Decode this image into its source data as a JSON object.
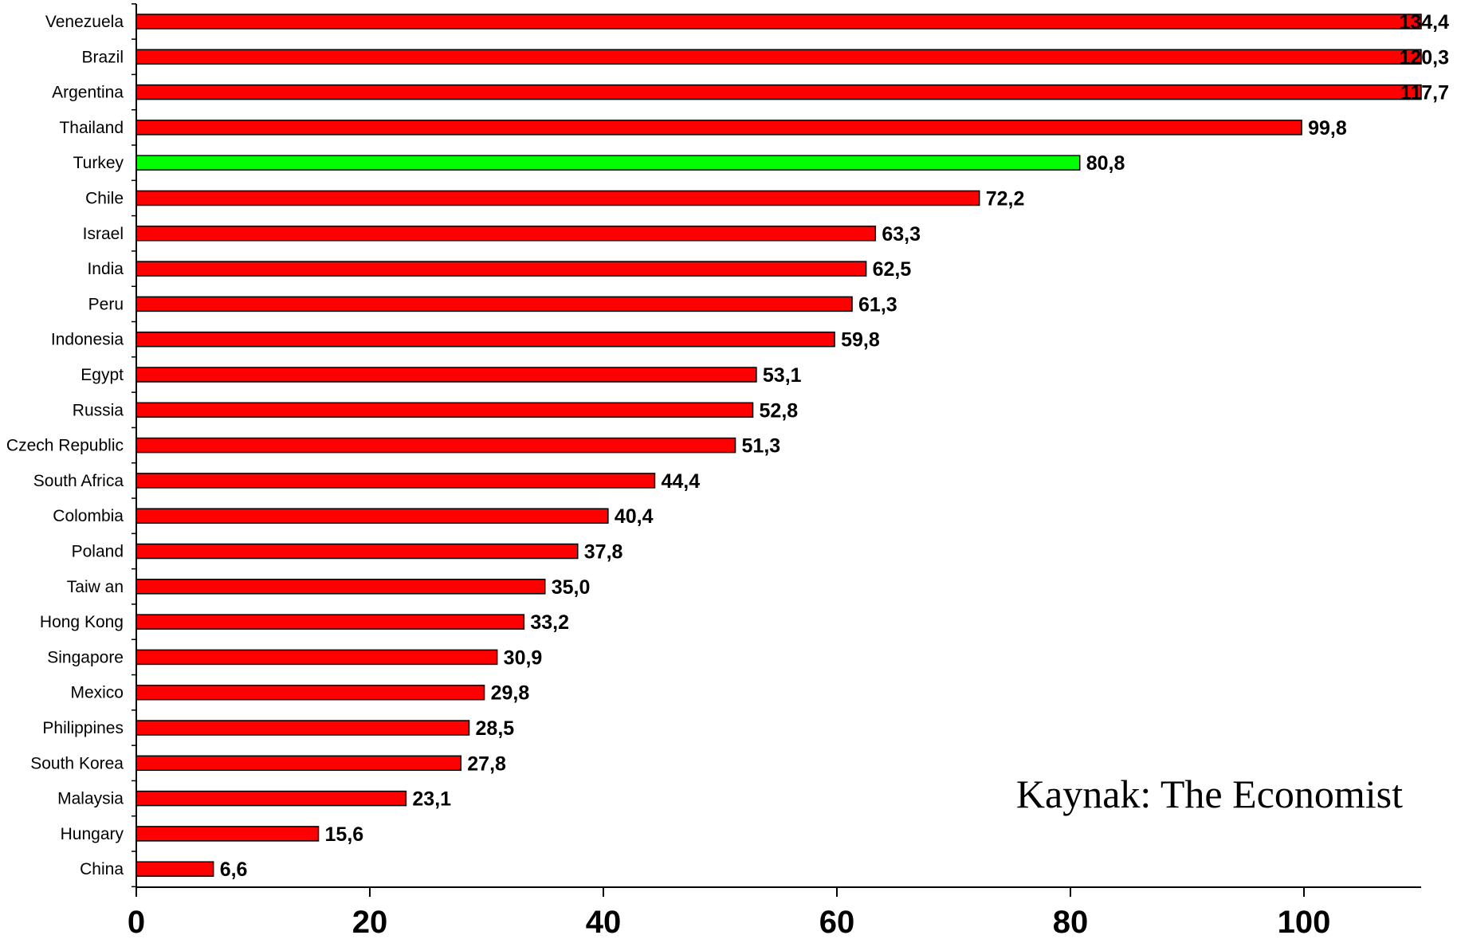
{
  "chart_data": {
    "type": "bar",
    "orientation": "horizontal",
    "title": "",
    "xlabel": "",
    "ylabel": "",
    "xlim": [
      0,
      110
    ],
    "ticks": [
      0,
      20,
      40,
      60,
      80,
      100
    ],
    "tick_labels": [
      "0",
      "20",
      "40",
      "60",
      "80",
      "100"
    ],
    "grid": false,
    "legend": "none",
    "annotation": "Kaynak: The Economist",
    "colors": {
      "default_bar": "#ff0000",
      "highlight_bar": "#00ff00",
      "outline": "#000000"
    },
    "highlight": "Turkey",
    "categories": [
      "Venezuela",
      "Brazil",
      "Argentina",
      "Thailand",
      "Turkey",
      "Chile",
      "Israel",
      "India",
      "Peru",
      "Indonesia",
      "Egypt",
      "Russia",
      "Czech Republic",
      "South Africa",
      "Colombia",
      "Poland",
      "Taiw an",
      "Hong Kong",
      "Singapore",
      "Mexico",
      "Philippines",
      "South Korea",
      "Malaysia",
      "Hungary",
      "China"
    ],
    "values": [
      134.4,
      120.3,
      117.7,
      99.8,
      80.8,
      72.2,
      63.3,
      62.5,
      61.3,
      59.8,
      53.1,
      52.8,
      51.3,
      44.4,
      40.4,
      37.8,
      35.0,
      33.2,
      30.9,
      29.8,
      28.5,
      27.8,
      23.1,
      15.6,
      6.6
    ],
    "value_labels": [
      "134,4",
      "120,3",
      "117,7",
      "99,8",
      "80,8",
      "72,2",
      "63,3",
      "62,5",
      "61,3",
      "59,8",
      "53,1",
      "52,8",
      "51,3",
      "44,4",
      "40,4",
      "37,8",
      "35,0",
      "33,2",
      "30,9",
      "29,8",
      "28,5",
      "27,8",
      "23,1",
      "15,6",
      "6,6"
    ]
  }
}
